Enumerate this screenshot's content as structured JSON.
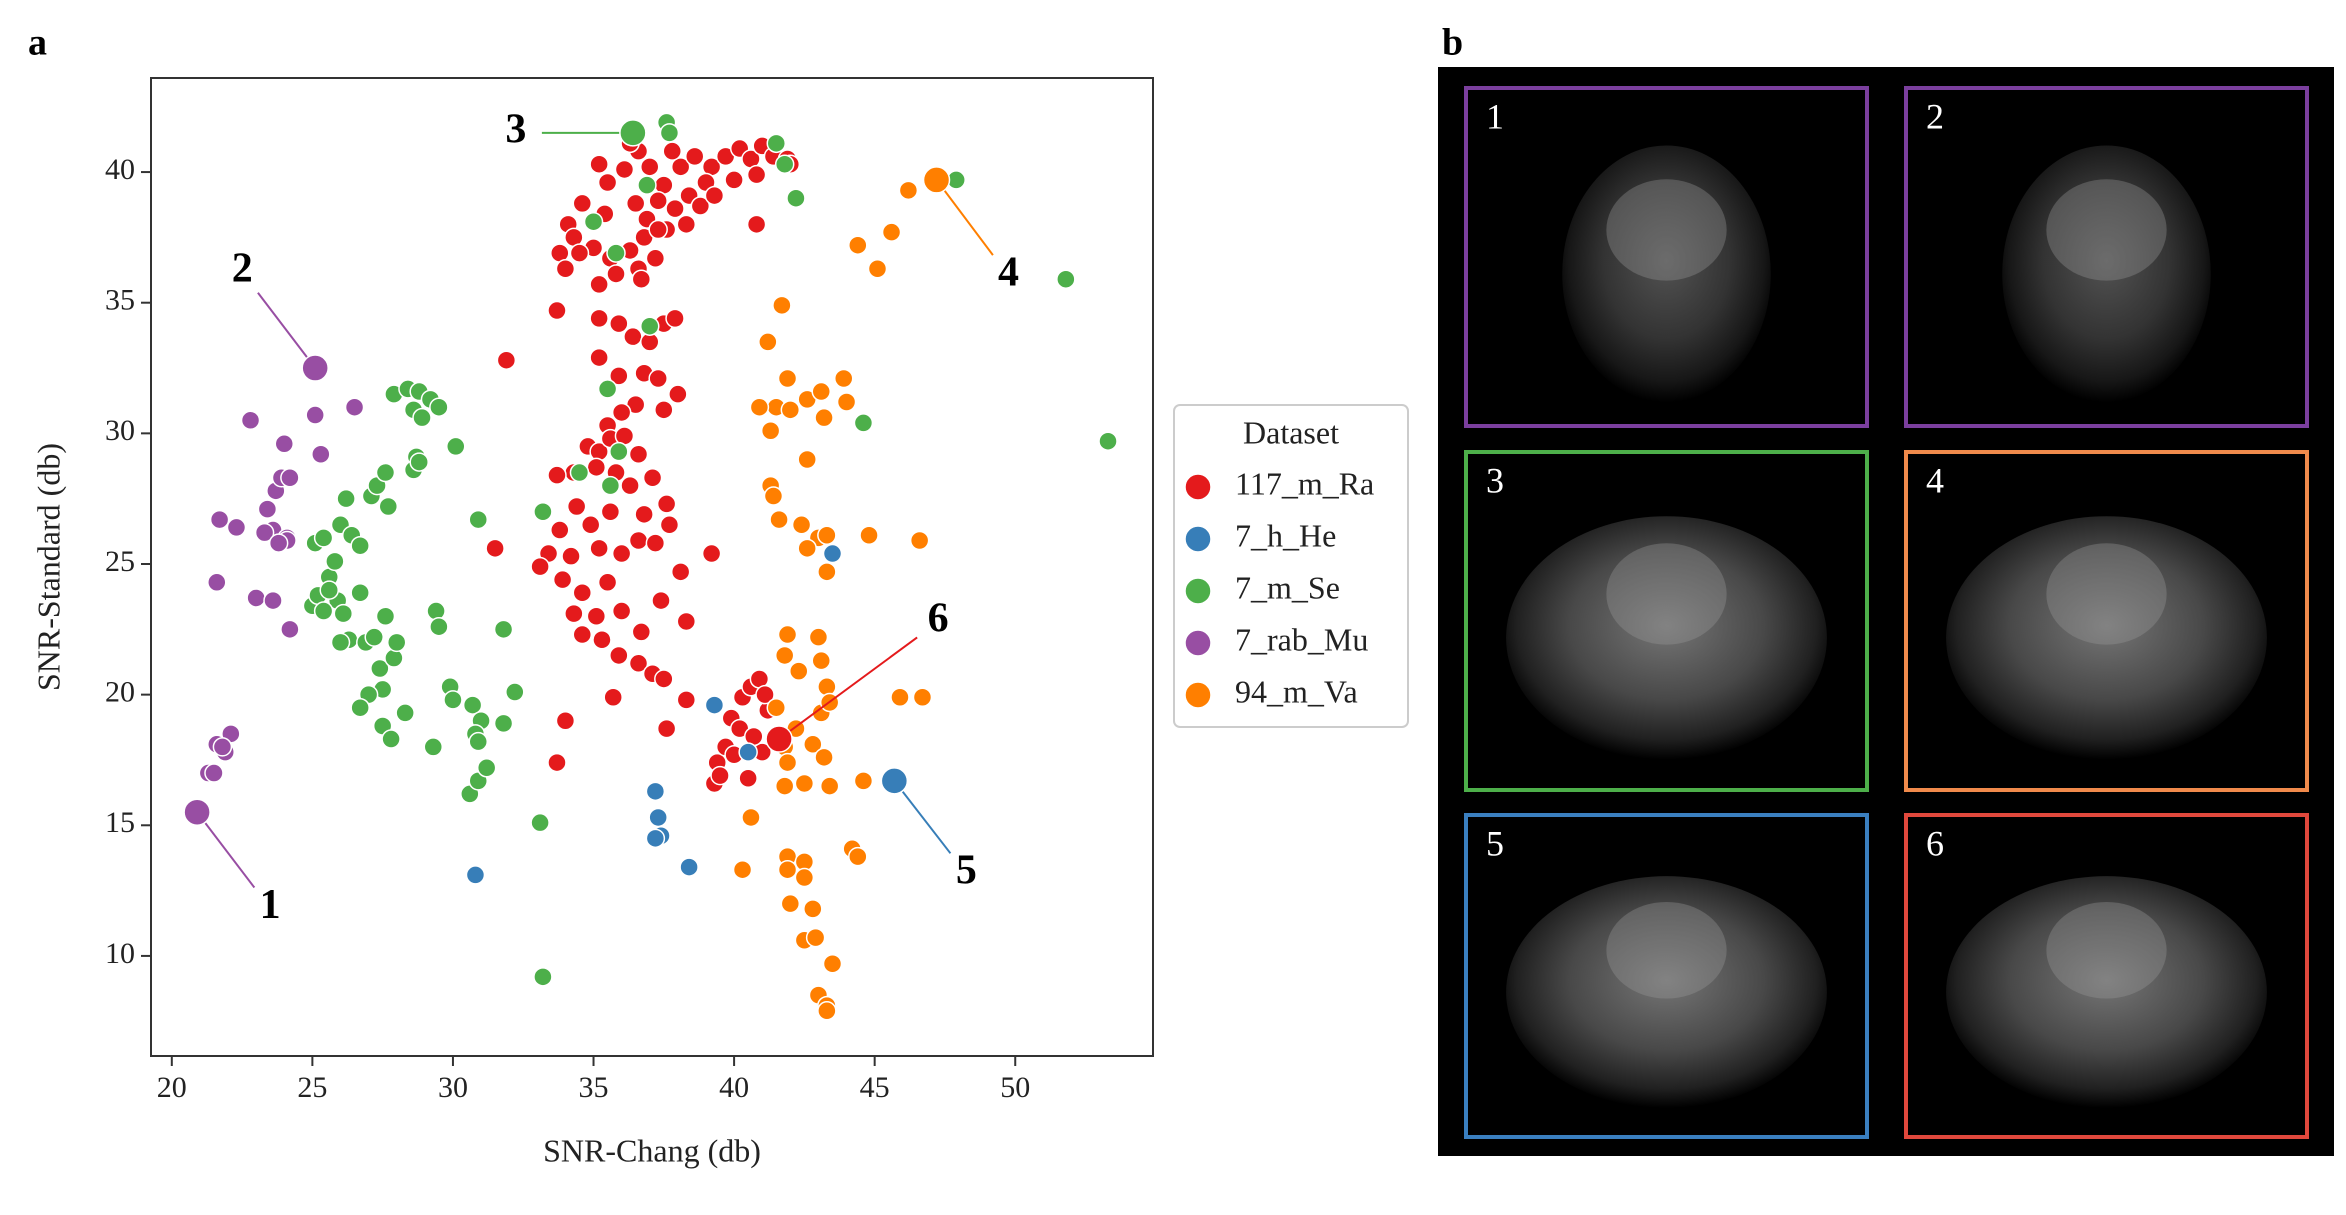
{
  "panel_labels": [
    "a",
    "b"
  ],
  "chart_data": {
    "type": "scatter",
    "x_label": "SNR-Chang (db)",
    "y_label": "SNR-Standard (db)",
    "xlim": [
      19.26,
      54.9
    ],
    "ylim": [
      6.17,
      43.6
    ],
    "xticks": [
      20,
      25,
      30,
      35,
      40,
      45,
      50
    ],
    "yticks": [
      10,
      15,
      20,
      25,
      30,
      35,
      40
    ],
    "legend_title": "Dataset",
    "legend_position": "right",
    "series": [
      {
        "name": "117_m_Ra",
        "color": "#e41a1c",
        "x": [
          36.6,
          37.0,
          37.5,
          38.1,
          38.6,
          39.2,
          39.7,
          40.2,
          40.6,
          41.0,
          41.4,
          41.9,
          42.0,
          40.8,
          40.0,
          39.0,
          38.4,
          37.9,
          37.3,
          36.5,
          36.9,
          37.6,
          38.3,
          38.8,
          39.3,
          35.4,
          34.6,
          34.1,
          34.3,
          35.0,
          35.6,
          36.3,
          36.8,
          37.2,
          36.6,
          35.8,
          35.2,
          34.5,
          33.8,
          34.0,
          36.7,
          37.3,
          40.8,
          35.2,
          35.5,
          36.1,
          37.8,
          36.3,
          33.7,
          35.2,
          35.9,
          36.4,
          37.5,
          37.9,
          37.0,
          35.2,
          31.9,
          35.9,
          36.8,
          37.3,
          38.0,
          36.5,
          37.5,
          36.0,
          35.5,
          34.8,
          35.2,
          35.6,
          36.1,
          36.6,
          35.8,
          35.1,
          34.3,
          33.7,
          36.3,
          37.1,
          37.6,
          36.8,
          35.6,
          34.9,
          34.4,
          33.8,
          33.4,
          33.1,
          33.9,
          34.2,
          35.2,
          36.0,
          36.6,
          37.2,
          37.7,
          35.5,
          34.6,
          34.3,
          35.1,
          36.0,
          36.7,
          35.3,
          34.6,
          35.9,
          36.6,
          37.1,
          35.7,
          37.5,
          34.0,
          33.7,
          31.5,
          39.2,
          38.3,
          37.6,
          39.4,
          39.3,
          39.7,
          39.9,
          40.3,
          40.6,
          40.9,
          41.2,
          40.2,
          40.0,
          41.0,
          40.7,
          39.5,
          40.5,
          41.1,
          38.3,
          38.1,
          37.4
        ],
        "y": [
          40.8,
          40.2,
          39.5,
          40.2,
          40.6,
          40.2,
          40.6,
          40.9,
          40.5,
          41.0,
          40.6,
          40.5,
          40.3,
          39.9,
          39.7,
          39.6,
          39.1,
          38.6,
          38.9,
          38.8,
          38.2,
          37.8,
          38.0,
          38.7,
          39.1,
          38.4,
          38.8,
          38.0,
          37.5,
          37.1,
          36.7,
          37.0,
          37.5,
          36.7,
          36.3,
          36.1,
          35.7,
          36.9,
          36.9,
          36.3,
          35.9,
          37.8,
          38.0,
          40.3,
          39.6,
          40.1,
          40.8,
          41.1,
          34.7,
          34.4,
          34.2,
          33.7,
          34.2,
          34.4,
          33.5,
          32.9,
          32.8,
          32.2,
          32.3,
          32.1,
          31.5,
          31.1,
          30.9,
          30.8,
          30.3,
          29.5,
          29.3,
          29.8,
          29.9,
          29.2,
          28.5,
          28.7,
          28.5,
          28.4,
          28.0,
          28.3,
          27.3,
          26.9,
          27.0,
          26.5,
          27.2,
          26.3,
          25.4,
          24.9,
          24.4,
          25.3,
          25.6,
          25.4,
          25.9,
          25.8,
          26.5,
          24.3,
          23.9,
          23.1,
          23.0,
          23.2,
          22.4,
          22.1,
          22.3,
          21.5,
          21.2,
          20.8,
          19.9,
          20.6,
          19.0,
          17.4,
          25.6,
          25.4,
          19.8,
          18.7,
          17.4,
          16.6,
          18.0,
          19.1,
          19.9,
          20.3,
          20.6,
          19.4,
          18.7,
          17.7,
          17.8,
          18.4,
          16.9,
          16.8,
          20.0,
          22.8,
          24.7,
          23.6
        ]
      },
      {
        "name": "7_h_He",
        "color": "#377eb8",
        "x": [
          30.8,
          37.2,
          37.3,
          37.4,
          37.2,
          38.4,
          39.3,
          40.5,
          43.5
        ],
        "y": [
          13.1,
          16.3,
          15.3,
          14.6,
          14.5,
          13.4,
          19.6,
          17.8,
          25.4
        ]
      },
      {
        "name": "7_m_Se",
        "color": "#4daf4a",
        "x": [
          25.9,
          25.0,
          25.2,
          25.4,
          25.6,
          25.8,
          26.0,
          26.2,
          26.4,
          26.7,
          27.1,
          27.3,
          27.6,
          27.7,
          27.9,
          28.4,
          28.8,
          29.2,
          28.6,
          28.9,
          29.5,
          28.7,
          28.6,
          28.8,
          30.1,
          25.1,
          25.4,
          25.6,
          26.1,
          26.3,
          26.0,
          26.7,
          26.9,
          27.2,
          27.6,
          27.4,
          27.5,
          27.9,
          28.0,
          27.0,
          26.7,
          27.5,
          27.8,
          28.3,
          29.4,
          29.5,
          29.3,
          29.9,
          30.0,
          30.7,
          31.0,
          30.8,
          30.9,
          30.6,
          30.9,
          31.2,
          31.8,
          32.2,
          31.8,
          30.9,
          33.1,
          33.2,
          33.2,
          34.5,
          35.5,
          35.9,
          35.6,
          35.0,
          35.8,
          37.0,
          36.9,
          37.6,
          37.7,
          41.5,
          41.8,
          42.2,
          44.6,
          47.9,
          51.8,
          53.3
        ],
        "y": [
          23.6,
          23.4,
          23.8,
          23.2,
          24.5,
          25.1,
          26.5,
          27.5,
          26.1,
          25.7,
          27.6,
          28.0,
          28.5,
          27.2,
          31.5,
          31.7,
          31.6,
          31.3,
          30.9,
          30.6,
          31.0,
          29.1,
          28.6,
          28.9,
          29.5,
          25.8,
          26.0,
          24.0,
          23.1,
          22.1,
          22.0,
          23.9,
          22.0,
          22.2,
          23.0,
          21.0,
          20.2,
          21.4,
          22.0,
          20.0,
          19.5,
          18.8,
          18.3,
          19.3,
          23.2,
          22.6,
          18.0,
          20.3,
          19.8,
          19.6,
          19.0,
          18.5,
          18.2,
          16.2,
          16.7,
          17.2,
          18.9,
          20.1,
          22.5,
          26.7,
          15.1,
          9.2,
          27.0,
          28.5,
          31.7,
          29.3,
          28.0,
          38.1,
          36.9,
          34.1,
          39.5,
          41.9,
          41.5,
          41.1,
          40.3,
          39.0,
          30.4,
          39.7,
          35.9,
          29.7
        ]
      },
      {
        "name": "7_rab_Mu",
        "color": "#984ea3",
        "x": [
          21.3,
          21.5,
          21.6,
          21.9,
          22.1,
          21.8,
          21.6,
          21.7,
          22.3,
          22.8,
          23.4,
          23.6,
          23.7,
          23.9,
          24.0,
          24.1,
          24.2,
          23.0,
          23.6,
          24.2,
          24.1,
          25.1,
          25.3,
          26.5,
          23.3,
          23.8
        ],
        "y": [
          17.0,
          17.0,
          18.1,
          17.8,
          18.5,
          18.0,
          24.3,
          26.7,
          26.4,
          30.5,
          27.1,
          26.3,
          27.8,
          28.3,
          29.6,
          26.0,
          28.3,
          23.7,
          23.6,
          22.5,
          25.9,
          30.7,
          29.2,
          31.0,
          26.2,
          25.8
        ]
      },
      {
        "name": "94_m_Va",
        "color": "#ff7f00",
        "x": [
          41.7,
          41.2,
          41.9,
          41.5,
          42.0,
          40.9,
          42.6,
          43.1,
          43.2,
          43.9,
          44.0,
          42.6,
          41.3,
          41.3,
          41.4,
          41.6,
          42.4,
          43.0,
          42.6,
          43.3,
          43.3,
          44.8,
          46.6,
          44.4,
          45.1,
          45.6,
          46.2,
          41.9,
          41.8,
          42.3,
          43.1,
          43.0,
          43.3,
          41.5,
          42.2,
          43.1,
          43.4,
          41.8,
          42.8,
          43.2,
          41.9,
          41.8,
          42.5,
          43.4,
          44.6,
          45.9,
          46.7,
          40.6,
          41.9,
          42.5,
          41.9,
          42.5,
          40.3,
          42.0,
          42.8,
          42.5,
          42.9,
          43.5,
          43.0,
          43.3,
          43.3,
          44.2,
          44.4
        ],
        "y": [
          34.9,
          33.5,
          32.1,
          31.0,
          30.9,
          31.0,
          31.3,
          31.6,
          30.6,
          32.1,
          31.2,
          29.0,
          30.1,
          28.0,
          27.6,
          26.7,
          26.5,
          26.0,
          25.6,
          26.1,
          24.7,
          26.1,
          25.9,
          37.2,
          36.3,
          37.7,
          39.3,
          22.3,
          21.5,
          20.9,
          21.3,
          22.2,
          20.3,
          19.5,
          18.7,
          19.3,
          19.7,
          18.0,
          18.1,
          17.6,
          17.4,
          16.5,
          16.6,
          16.5,
          16.7,
          19.9,
          19.9,
          15.3,
          13.8,
          13.6,
          13.3,
          13.0,
          13.3,
          12.0,
          11.8,
          10.6,
          10.7,
          9.7,
          8.5,
          8.1,
          7.9,
          14.1,
          13.8
        ]
      }
    ],
    "annotations": [
      {
        "text": "1",
        "x": 20.9,
        "y": 15.5,
        "color": "#984ea3"
      },
      {
        "text": "2",
        "x": 25.1,
        "y": 32.5,
        "color": "#984ea3"
      },
      {
        "text": "3",
        "x": 36.4,
        "y": 41.5,
        "color": "#4daf4a"
      },
      {
        "text": "4",
        "x": 47.2,
        "y": 39.7,
        "color": "#ff7f00"
      },
      {
        "text": "5",
        "x": 45.7,
        "y": 16.7,
        "color": "#377eb8"
      },
      {
        "text": "6",
        "x": 41.6,
        "y": 18.3,
        "color": "#e41a1c"
      }
    ]
  },
  "thumbnails": [
    {
      "label": "1",
      "color": "#7b3f9e"
    },
    {
      "label": "2",
      "color": "#7b3f9e"
    },
    {
      "label": "3",
      "color": "#4daf4a"
    },
    {
      "label": "4",
      "color": "#f08a4b"
    },
    {
      "label": "5",
      "color": "#3a7fc0"
    },
    {
      "label": "6",
      "color": "#e0483c"
    }
  ]
}
